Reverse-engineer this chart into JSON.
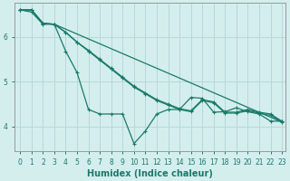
{
  "xlabel": "Humidex (Indice chaleur)",
  "bg_color": "#d4eeee",
  "grid_color": "#b8d8d8",
  "line_color": "#1a7a6a",
  "xlim": [
    -0.5,
    23.3
  ],
  "ylim": [
    3.45,
    6.75
  ],
  "yticks": [
    4,
    5,
    6
  ],
  "xticks": [
    0,
    1,
    2,
    3,
    4,
    5,
    6,
    7,
    8,
    9,
    10,
    11,
    12,
    13,
    14,
    15,
    16,
    17,
    18,
    19,
    20,
    21,
    22,
    23
  ],
  "line1_x": [
    0,
    1,
    2,
    3,
    4,
    5,
    6,
    7,
    8,
    9,
    10,
    11,
    12,
    13,
    14,
    15,
    16,
    17,
    18,
    19,
    20,
    21,
    22,
    23
  ],
  "line1_y": [
    6.6,
    6.55,
    6.28,
    6.28,
    5.68,
    5.2,
    4.38,
    4.28,
    4.28,
    4.28,
    3.62,
    3.9,
    4.28,
    4.38,
    4.38,
    4.65,
    4.63,
    4.32,
    4.33,
    4.42,
    4.33,
    4.28,
    4.12,
    4.12
  ],
  "line2_x": [
    0,
    1,
    2,
    3,
    4,
    5,
    6,
    7,
    8,
    9,
    10,
    11,
    12,
    13,
    14,
    15,
    16,
    17,
    18,
    19,
    20,
    21,
    22,
    23
  ],
  "line2_y": [
    6.6,
    6.6,
    6.3,
    6.28,
    6.1,
    5.88,
    5.7,
    5.5,
    5.3,
    5.1,
    4.9,
    4.75,
    4.6,
    4.5,
    4.4,
    4.35,
    4.6,
    4.55,
    4.32,
    4.32,
    4.38,
    4.32,
    4.28,
    4.12
  ],
  "line3_x": [
    0,
    1,
    2,
    3,
    4,
    5,
    6,
    7,
    8,
    9,
    10,
    11,
    12,
    13,
    14,
    15,
    16,
    17,
    18,
    19,
    20,
    21,
    22,
    23
  ],
  "line3_y": [
    6.6,
    6.6,
    6.3,
    6.28,
    6.1,
    5.88,
    5.68,
    5.48,
    5.28,
    5.08,
    4.88,
    4.73,
    4.58,
    4.48,
    4.38,
    4.33,
    4.58,
    4.53,
    4.3,
    4.3,
    4.35,
    4.3,
    4.25,
    4.1
  ],
  "line4_x": [
    0,
    1,
    2,
    3,
    23
  ],
  "line4_y": [
    6.6,
    6.6,
    6.3,
    6.28,
    4.1
  ]
}
